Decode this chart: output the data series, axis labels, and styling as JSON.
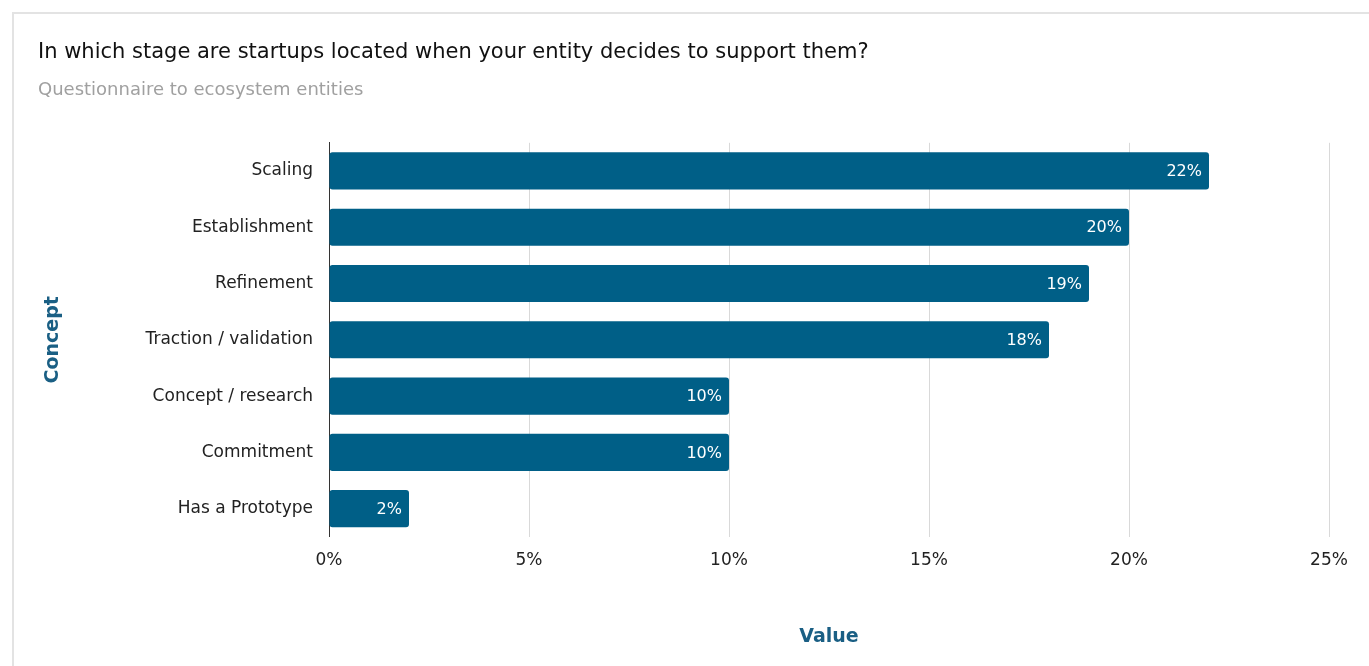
{
  "chart_data": {
    "type": "bar",
    "orientation": "horizontal",
    "title": "In which stage are startups located when your entity decides to support them?",
    "subtitle": "Questionnaire to ecosystem entities",
    "xlabel": "Value",
    "ylabel": "Concept",
    "categories": [
      "Scaling",
      "Establishment",
      "Refinement",
      "Traction / validation",
      "Concept / research",
      "Commitment",
      "Has a Prototype"
    ],
    "values": [
      22,
      20,
      19,
      18,
      10,
      10,
      2
    ],
    "color": "#005f87",
    "xlim": [
      0,
      25
    ],
    "xticks": [
      {
        "value": 0,
        "label": "0%"
      },
      {
        "value": 5,
        "label": "5%"
      },
      {
        "value": 10,
        "label": "10%"
      },
      {
        "value": 15,
        "label": "15%"
      },
      {
        "value": 20,
        "label": "20%"
      },
      {
        "value": 25,
        "label": "25%"
      }
    ],
    "value_labels": [
      "22%",
      "20%",
      "19%",
      "18%",
      "10%",
      "10%",
      "2%"
    ],
    "grid": "x",
    "legend": false
  }
}
